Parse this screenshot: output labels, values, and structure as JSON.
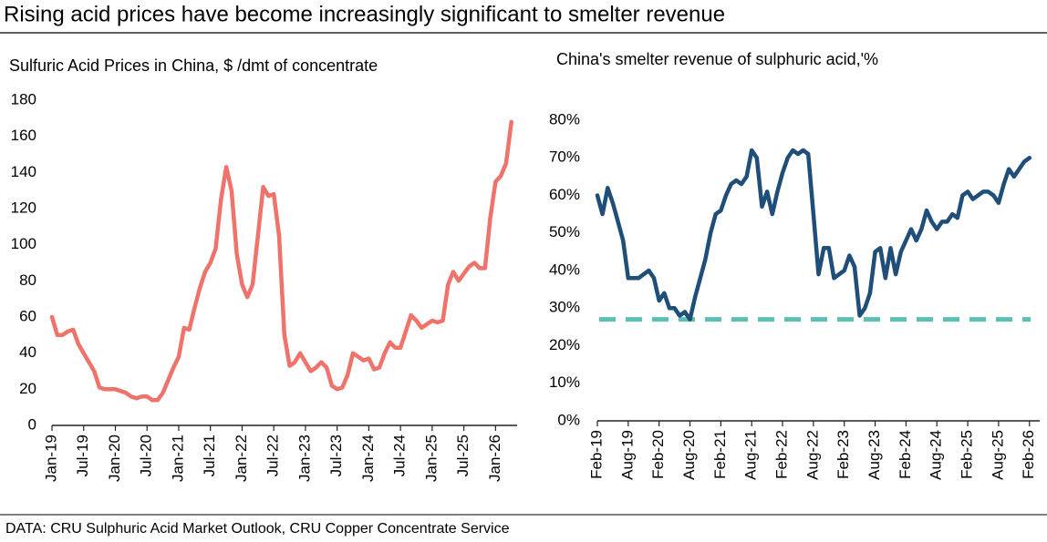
{
  "title": "Rising acid prices have become increasingly significant to smelter revenue",
  "source": "DATA: CRU Sulphuric Acid Market Outlook, CRU Copper Concentrate Service",
  "chart_data": [
    {
      "type": "line",
      "title": "Sulfuric Acid Prices in China, $ /dmt of concentrate",
      "categories": [
        "Jan-19",
        null,
        null,
        null,
        null,
        null,
        "Jul-19",
        null,
        null,
        null,
        null,
        null,
        "Jan-20",
        null,
        null,
        null,
        null,
        null,
        "Jul-20",
        null,
        null,
        null,
        null,
        null,
        "Jan-21",
        null,
        null,
        null,
        null,
        null,
        "Jul-21",
        null,
        null,
        null,
        null,
        null,
        "Jan-22",
        null,
        null,
        null,
        null,
        null,
        "Jul-22",
        null,
        null,
        null,
        null,
        null,
        "Jan-23",
        null,
        null,
        null,
        null,
        null,
        "Jul-23",
        null,
        null,
        null,
        null,
        null,
        "Jan-24",
        null,
        null,
        null,
        null,
        null,
        "Jul-24",
        null,
        null,
        null,
        null,
        null,
        "Jan-25",
        null,
        null,
        null,
        null,
        null,
        "Jul-25",
        null,
        null,
        null,
        null,
        null,
        "Jan-26",
        null,
        null,
        null
      ],
      "series": [
        {
          "name": "Sulfuric acid price",
          "color": "#ef736a",
          "values": [
            60,
            50,
            50,
            52,
            53,
            45,
            40,
            35,
            30,
            21,
            20,
            20,
            20,
            19,
            18,
            16,
            15,
            16,
            16,
            14,
            14,
            18,
            25,
            32,
            38,
            54,
            53,
            65,
            76,
            85,
            90,
            98,
            125,
            143,
            130,
            95,
            78,
            71,
            78,
            105,
            132,
            127,
            128,
            105,
            50,
            33,
            35,
            40,
            35,
            30,
            32,
            35,
            32,
            22,
            20,
            21,
            28,
            40,
            38,
            36,
            37,
            31,
            32,
            40,
            46,
            43,
            43,
            52,
            61,
            58,
            54,
            56,
            58,
            57,
            58,
            78,
            85,
            80,
            84,
            88,
            90,
            87,
            87,
            115,
            135,
            138,
            145,
            168
          ]
        }
      ],
      "ylim": [
        0,
        180
      ],
      "yticks": [
        0,
        20,
        40,
        60,
        80,
        100,
        120,
        140,
        160,
        180
      ]
    },
    {
      "type": "line",
      "title": "China's smelter revenue of sulphuric acid,'%",
      "categories": [
        "Feb-19",
        null,
        null,
        null,
        null,
        null,
        "Aug-19",
        null,
        null,
        null,
        null,
        null,
        "Feb-20",
        null,
        null,
        null,
        null,
        null,
        "Aug-20",
        null,
        null,
        null,
        null,
        null,
        "Feb-21",
        null,
        null,
        null,
        null,
        null,
        "Aug-21",
        null,
        null,
        null,
        null,
        null,
        "Feb-22",
        null,
        null,
        null,
        null,
        null,
        "Aug-22",
        null,
        null,
        null,
        null,
        null,
        "Feb-23",
        null,
        null,
        null,
        null,
        null,
        "Aug-23",
        null,
        null,
        null,
        null,
        null,
        "Feb-24",
        null,
        null,
        null,
        null,
        null,
        "Aug-24",
        null,
        null,
        null,
        null,
        null,
        "Feb-25",
        null,
        null,
        null,
        null,
        null,
        "Aug-25",
        null,
        null,
        null,
        null,
        null,
        "Feb-26"
      ],
      "series": [
        {
          "name": "Smelter revenue share",
          "color": "#1f4e79",
          "values": [
            60,
            55,
            62,
            58,
            53,
            48,
            38,
            38,
            38,
            39,
            40,
            38,
            32,
            34,
            30,
            30,
            28,
            29,
            27,
            33,
            38,
            43,
            50,
            55,
            56,
            60,
            63,
            64,
            63,
            65,
            72,
            70,
            57,
            61,
            55,
            61,
            66,
            70,
            72,
            71,
            72,
            71,
            55,
            39,
            46,
            46,
            38,
            39,
            40,
            44,
            41,
            28,
            30,
            34,
            45,
            46,
            38,
            46,
            39,
            45,
            48,
            51,
            48,
            51,
            56,
            53,
            51,
            53,
            53,
            55,
            54,
            60,
            61,
            59,
            60,
            61,
            61,
            60,
            58,
            63,
            67,
            65,
            67,
            69,
            70
          ]
        }
      ],
      "reference_line": {
        "value": 27,
        "color": "#5bbfb2"
      },
      "ylim": [
        0,
        80
      ],
      "yticks": [
        {
          "value": 0,
          "label": "0%"
        },
        {
          "value": 10,
          "label": "10%"
        },
        {
          "value": 20,
          "label": "20%"
        },
        {
          "value": 30,
          "label": "30%"
        },
        {
          "value": 40,
          "label": "40%"
        },
        {
          "value": 50,
          "label": "50%"
        },
        {
          "value": 60,
          "label": "60%"
        },
        {
          "value": 70,
          "label": "70%"
        },
        {
          "value": 80,
          "label": "80%"
        }
      ]
    }
  ]
}
